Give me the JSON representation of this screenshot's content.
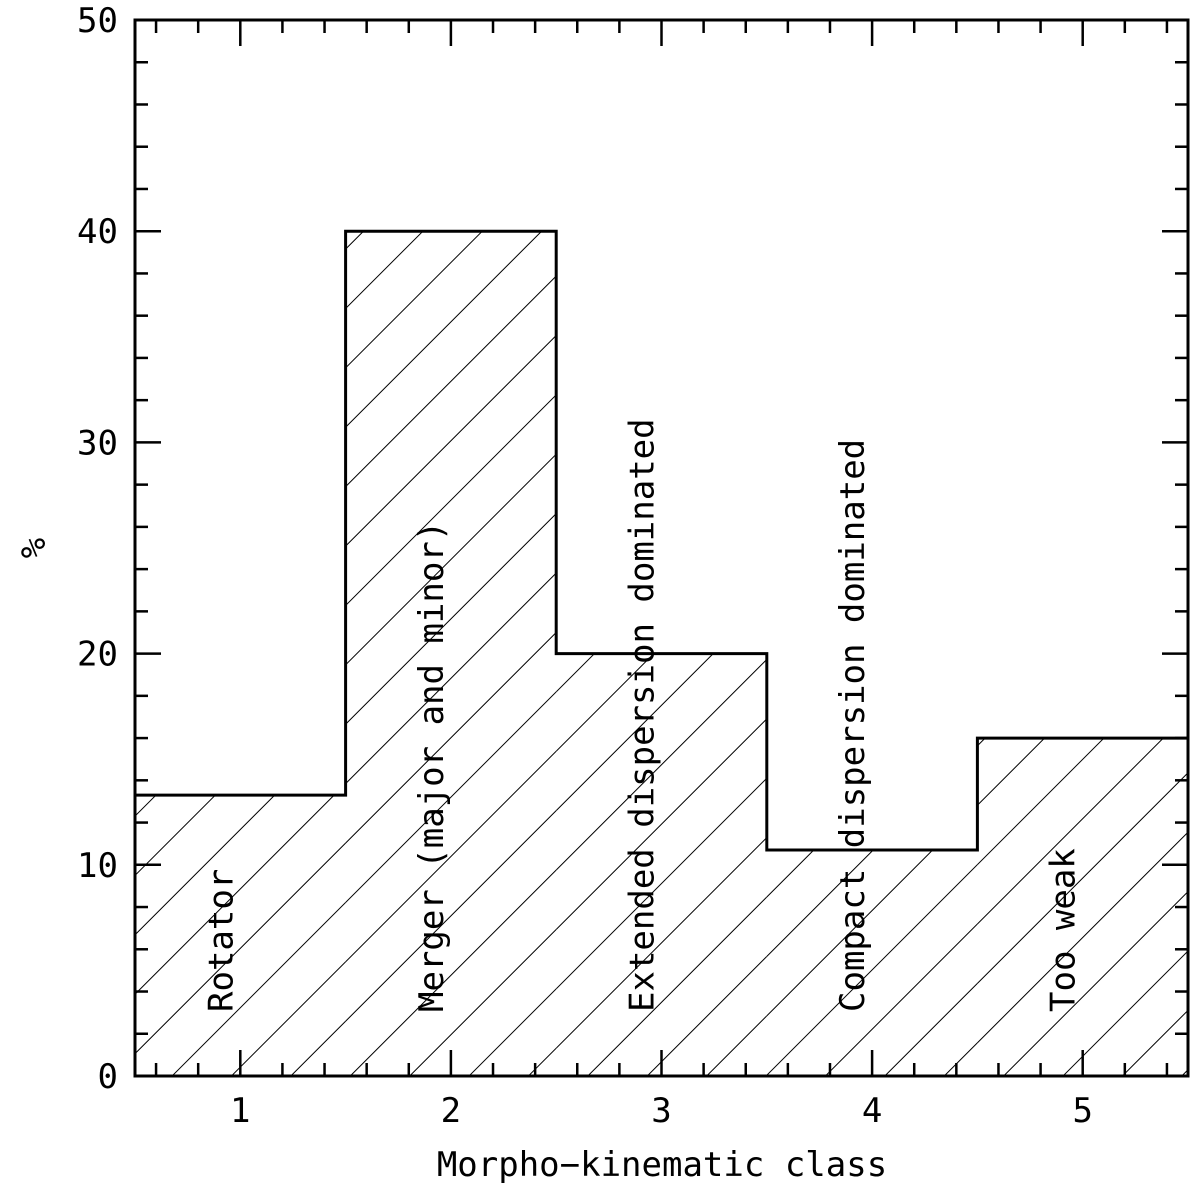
{
  "chart_data": {
    "type": "bar",
    "histogram": true,
    "hatched": true,
    "categories": [
      "1",
      "2",
      "3",
      "4",
      "5"
    ],
    "bar_labels": [
      "Rotator",
      "Merger (major and minor)",
      "Extended dispersion dominated",
      "Compact dispersion dominated",
      "Too weak"
    ],
    "values": [
      13.3,
      40.0,
      20.0,
      10.7,
      16.0
    ],
    "xlabel": "Morpho−kinematic class",
    "ylabel": "%",
    "xlim": [
      0.5,
      5.5
    ],
    "ylim": [
      0,
      50
    ],
    "y_ticks": [
      "0",
      "10",
      "20",
      "30",
      "40",
      "50"
    ],
    "grid": false,
    "legend": "none"
  }
}
